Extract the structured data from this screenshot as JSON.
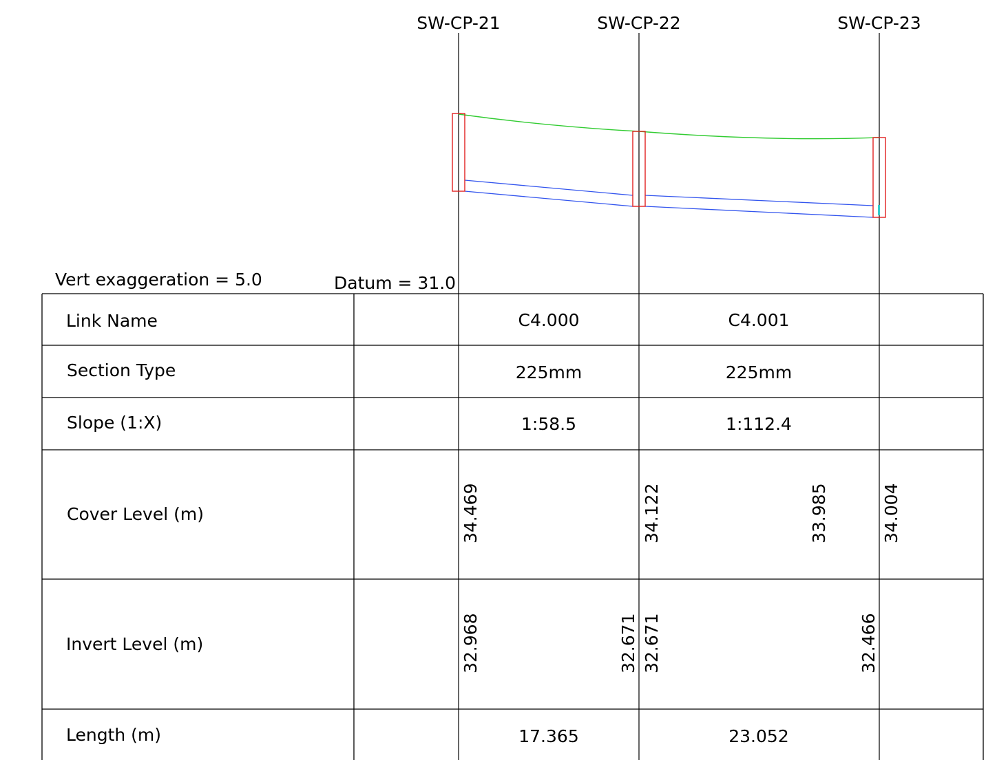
{
  "notes": {
    "vert_exaggeration": "Vert exaggeration = 5.0",
    "datum": "Datum = 31.0"
  },
  "manholes": [
    {
      "name": "SW-CP-21",
      "cover_level": "34.469"
    },
    {
      "name": "SW-CP-22",
      "cover_level": "34.122"
    },
    {
      "name": "SW-CP-23",
      "cover_level": "34.004"
    }
  ],
  "table": {
    "rows": {
      "link_name": "Link Name",
      "section_type": "Section Type",
      "slope": "Slope (1:X)",
      "cover_level": "Cover Level (m)",
      "invert_level": "Invert Level (m)",
      "length": "Length (m)"
    },
    "links": [
      {
        "name": "C4.000",
        "section": "225mm",
        "slope": "1:58.5",
        "length": "17.365",
        "invert_up": "32.968",
        "invert_down": "32.671"
      },
      {
        "name": "C4.001",
        "section": "225mm",
        "slope": "1:112.4",
        "length": "23.052",
        "invert_up": "32.671",
        "invert_down": "32.466"
      }
    ],
    "intermediate_cover_level": "33.985"
  },
  "colors": {
    "ground_line": "#33cc33",
    "pipe": "#3355ee",
    "manhole_outline": "#e02020",
    "water": "#33cccc",
    "grid": "#000000"
  }
}
